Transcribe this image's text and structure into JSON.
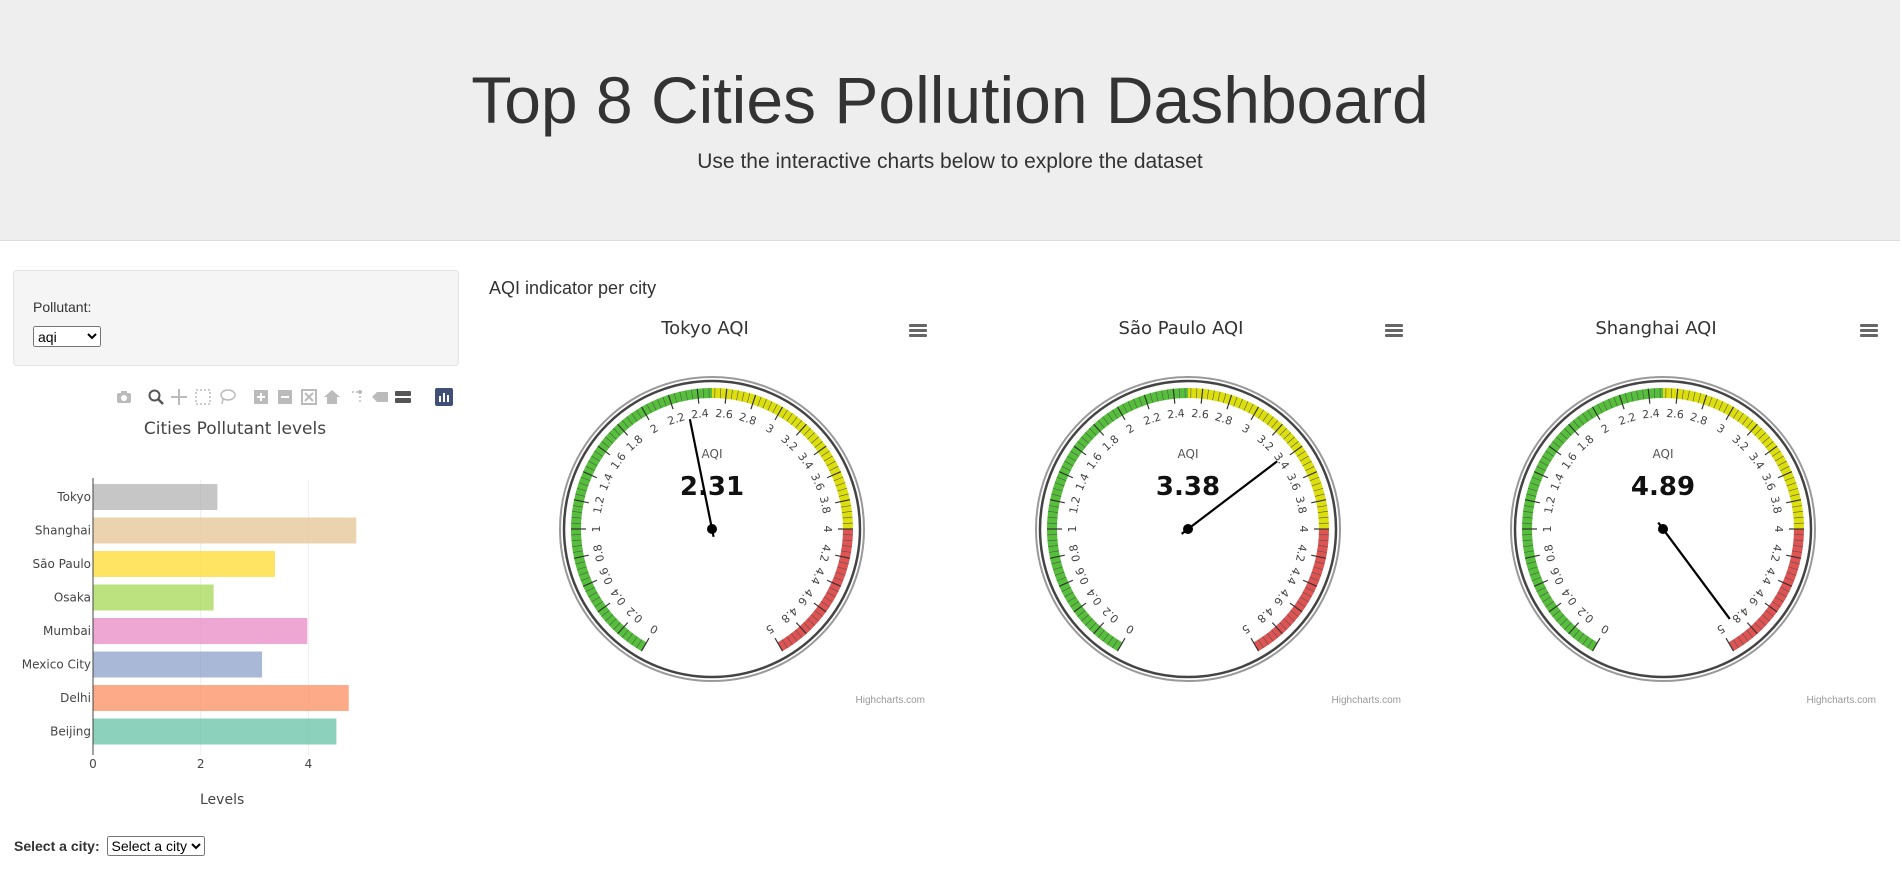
{
  "header": {
    "title": "Top 8 Cities Pollution Dashboard",
    "subtitle": "Use the interactive charts below to explore the dataset"
  },
  "controls": {
    "pollutant_label": "Pollutant:",
    "pollutant_value": "aqi",
    "city_label": "Select a city:",
    "city_placeholder": "Select a city"
  },
  "modebar": {
    "icons": [
      "camera-icon",
      "zoom-icon",
      "pan-icon",
      "box-select-icon",
      "lasso-icon",
      "zoom-in-icon",
      "zoom-out-icon",
      "autoscale-icon",
      "home-icon",
      "spike-lines-icon",
      "hover-closest-icon",
      "hover-compare-icon",
      "plotly-logo-icon"
    ]
  },
  "chart_data": [
    {
      "type": "bar",
      "orientation": "horizontal",
      "title": "Cities Pollutant levels",
      "xlabel": "Levels",
      "ylabel": "",
      "categories": [
        "Beijing",
        "Delhi",
        "Mexico City",
        "Mumbai",
        "Osaka",
        "São Paulo",
        "Shanghai",
        "Tokyo"
      ],
      "values": [
        4.52,
        4.75,
        3.14,
        3.98,
        2.24,
        3.38,
        4.89,
        2.31
      ],
      "colors": [
        "#66c2a5",
        "#fc8d62",
        "#8da0cb",
        "#e78ac3",
        "#a6d854",
        "#ffd92f",
        "#e5c494",
        "#b3b3b3"
      ],
      "xlim": [
        0,
        5.2
      ],
      "xticks": [
        "0",
        "2",
        "4"
      ],
      "grid": true
    },
    {
      "type": "gauge",
      "title": "Tokyo AQI",
      "label": "AQI",
      "value": 2.31,
      "display": "2.31",
      "range": [
        0,
        5
      ]
    },
    {
      "type": "gauge",
      "title": "São Paulo AQI",
      "label": "AQI",
      "value": 3.38,
      "display": "3.38",
      "range": [
        0,
        5
      ]
    },
    {
      "type": "gauge",
      "title": "Shanghai AQI",
      "label": "AQI",
      "value": 4.89,
      "display": "4.89",
      "range": [
        0,
        5
      ]
    }
  ],
  "gauge_ticks": [
    "0",
    "0.2",
    "0.4",
    "0.6",
    "0.8",
    "1",
    "1.2",
    "1.4",
    "1.6",
    "1.8",
    "2",
    "2.2",
    "2.4",
    "2.6",
    "2.8",
    "3",
    "3.2",
    "3.4",
    "3.6",
    "3.8",
    "4",
    "4.2",
    "4.4",
    "4.6",
    "4.8",
    "5"
  ],
  "gauge_bands": [
    {
      "from": 0,
      "to": 2.5,
      "color": "#55BF3B"
    },
    {
      "from": 2.5,
      "to": 4,
      "color": "#DDDF0D"
    },
    {
      "from": 4,
      "to": 5,
      "color": "#DF5353"
    }
  ],
  "aqi_heading": "AQI indicator per city",
  "credits": "Highcharts.com"
}
